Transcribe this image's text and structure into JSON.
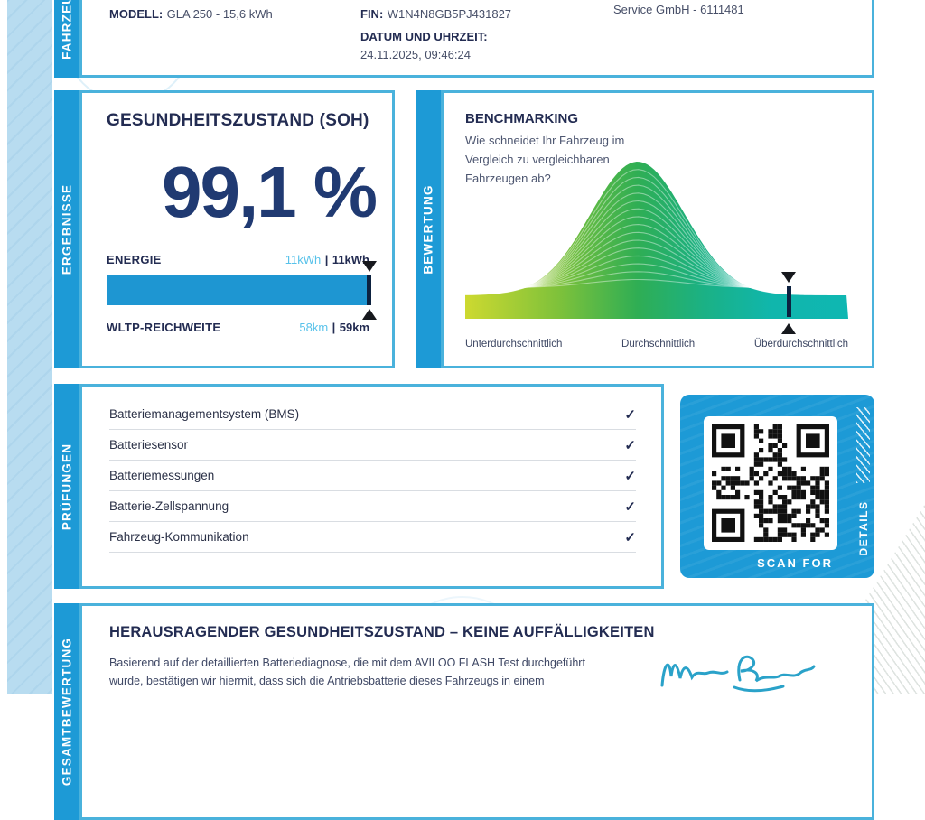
{
  "certificate": {
    "vehicle": {
      "section_label": "FAHRZEUG",
      "model_label": "MODELL:",
      "model_value": "GLA 250 - 15,6 kWh",
      "fin_label": "FIN:",
      "fin_value": "W1N4N8GB5PJ431827",
      "datetime_label": "DATUM UND UHRZEIT:",
      "datetime_value": "24.11.2025, 09:46:24",
      "issuer": "Service GmbH - 6111481"
    },
    "results": {
      "section_label": "ERGEBNISSE",
      "title": "GESUNDHEITSZUSTAND (SOH)",
      "soh_value": "99,1 %",
      "energy_label": "ENERGIE",
      "energy_current": "11kWh",
      "energy_separator": "|",
      "energy_original": "11kWh",
      "energy_bar_fill_pct": 100,
      "range_label": "WLTP-REICHWEITE",
      "range_current": "58km",
      "range_separator": "|",
      "range_original": "59km"
    },
    "benchmark": {
      "section_label": "BEWERTUNG",
      "title": "BENCHMARKING",
      "question": "Wie schneidet Ihr Fahrzeug im Vergleich zu vergleichbaren Fahrzeugen ab?"
    },
    "checks": {
      "section_label": "PRÜFUNGEN",
      "check_glyph": "✓",
      "items": [
        "Batteriemanagementsystem (BMS)",
        "Batteriesensor",
        "Batteriemessungen",
        "Batterie-Zellspannung",
        "Fahrzeug-Kommunikation"
      ]
    },
    "qr": {
      "scan_for": "SCAN FOR",
      "details": "DETAILS"
    },
    "summary": {
      "section_label": "GESAMTBEWERTUNG",
      "heading": "HERAUSRAGENDER GESUNDHEITSZUSTAND – KEINE AUFFÄLLIGKEITEN",
      "body_line1": "Basierend auf der detaillierten Batteriediagnose, die mit dem AVILOO FLASH Test durchgeführt",
      "body_line2": "wurde, bestätigen wir hiermit, dass sich die Antriebsbatterie dieses Fahrzeugs in einem"
    },
    "colors": {
      "accent_blue": "#1d9ad6",
      "box_border": "#4ab2dc",
      "bar_blue": "#1e96d2",
      "navy_text": "#232c52",
      "soh_navy": "#203a72",
      "value_light_blue": "#58c2ea",
      "marker_dark": "#0d2240"
    }
  },
  "chart_data": {
    "type": "area",
    "title": "BENCHMARKING",
    "curve": "bell",
    "x_categories": [
      "Unterdurchschnittlich",
      "Durchschnittlich",
      "Überdurchschnittlich"
    ],
    "peak_position_pct": 45,
    "vehicle_marker_pct": 84.5,
    "gradient": [
      "#cdd930",
      "#7cc13b",
      "#2fae54",
      "#1bb184",
      "#0fb7b2"
    ],
    "legend": "none",
    "grid": "off"
  }
}
